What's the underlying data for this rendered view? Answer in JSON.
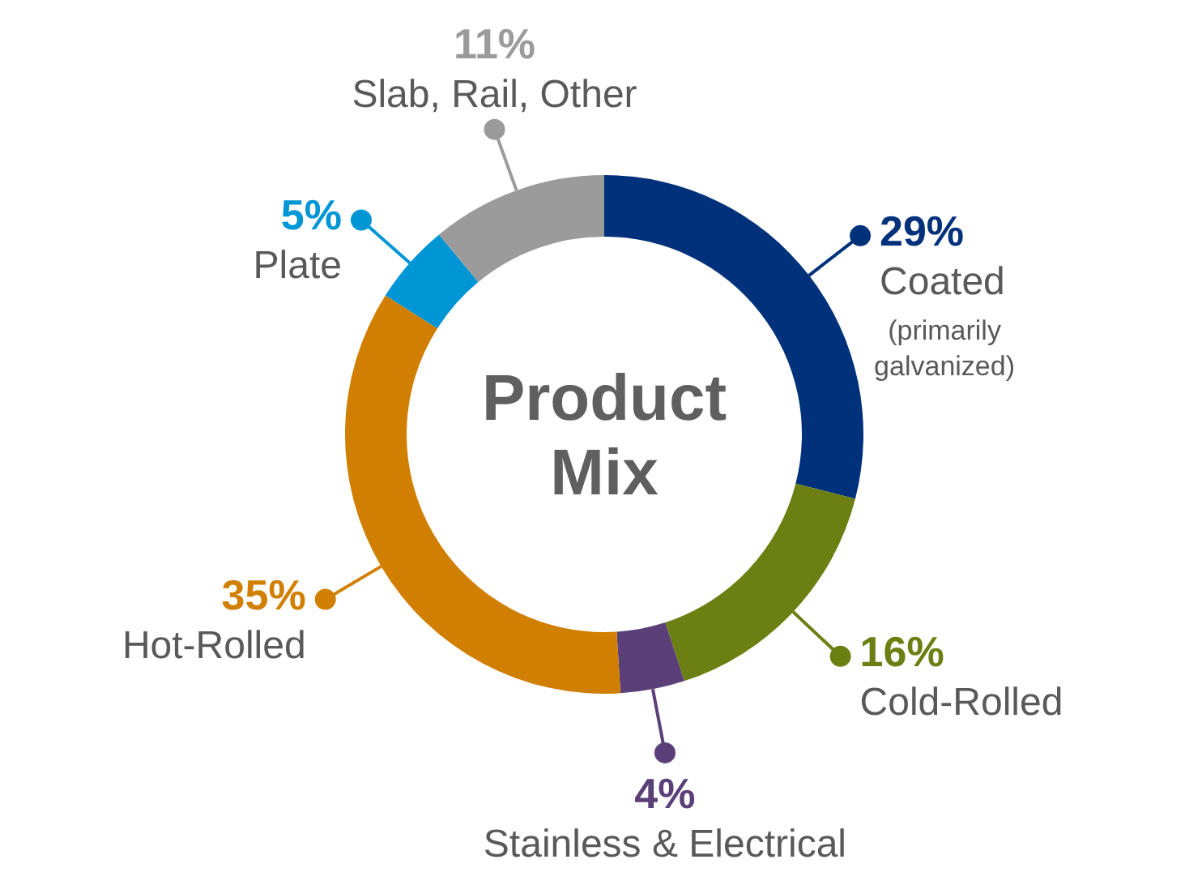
{
  "chart_data": {
    "type": "donut",
    "title": "Product Mix",
    "categories": [
      "Coated",
      "Cold-Rolled",
      "Stainless & Electrical",
      "Hot-Rolled",
      "Plate",
      "Slab, Rail, Other"
    ],
    "values": [
      29,
      16,
      4,
      35,
      5,
      11
    ],
    "value_labels": [
      "29%",
      "16%",
      "4%",
      "35%",
      "5%",
      "11%"
    ],
    "colors": [
      "#00317a",
      "#6b7f12",
      "#5a3f78",
      "#d17f00",
      "#0096d6",
      "#9b9b9b"
    ],
    "annotations": [
      {
        "text": "(primarily galvanized)",
        "x": "Coated"
      }
    ],
    "legend": "right"
  }
}
